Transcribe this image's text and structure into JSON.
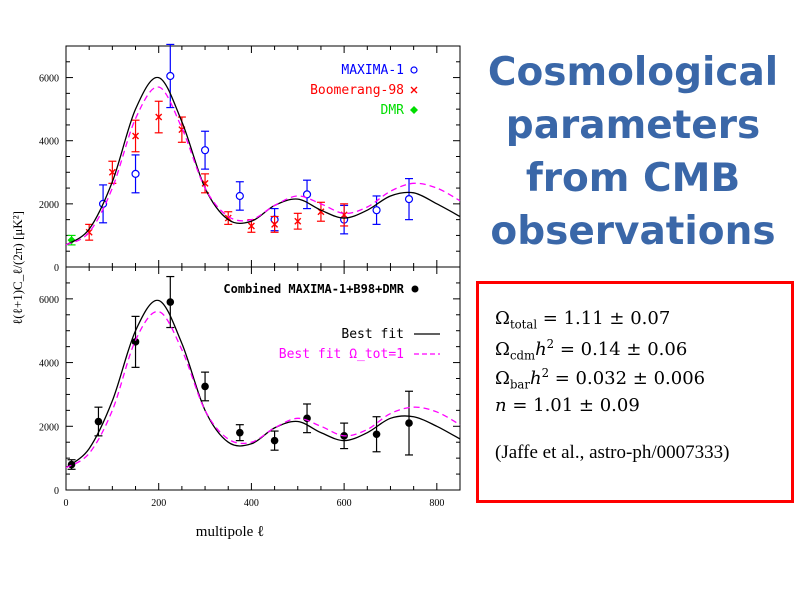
{
  "slide": {
    "title_lines": [
      "Cosmological",
      "parameters",
      "from CMB",
      "observations"
    ],
    "results": [
      {
        "symbol": "Ω",
        "sub": "total",
        "sup": "",
        "suffix": "",
        "value": " = 1.11 ± 0.07"
      },
      {
        "symbol": "Ω",
        "sub": "cdm",
        "sup": "2",
        "suffix": "h",
        "value": " = 0.14 ± 0.06"
      },
      {
        "symbol": "Ω",
        "sub": "bar",
        "sup": "2",
        "suffix": "h",
        "value": " = 0.032 ± 0.006"
      },
      {
        "symbol": "n",
        "sub": "",
        "sup": "",
        "suffix": "",
        "value": " = 1.01 ± 0.09"
      }
    ],
    "citation": "(Jaffe et al., astro-ph/0007333)"
  },
  "colors": {
    "title": "#3a67a8",
    "box_border": "#ff0000",
    "maxima": "#0000ff",
    "boomerang": "#ff0000",
    "dmr": "#00dd00",
    "best_fit": "#000000",
    "best_fit_omega1": "#ff00ff"
  },
  "chart_data": [
    {
      "type": "scatter",
      "panel": "top",
      "ylabel": "ℓ(ℓ+1)C_ℓ/(2π) [μK²]",
      "ylim": [
        0,
        7000
      ],
      "xlim": [
        0,
        850
      ],
      "yticks": [
        0,
        2000,
        4000,
        6000
      ],
      "legend_position": "top-right",
      "series": [
        {
          "name": "MAXIMA-1",
          "marker": "open-circle",
          "color": "#0000ff",
          "x": [
            80,
            150,
            225,
            300,
            375,
            450,
            520,
            600,
            670,
            740
          ],
          "y": [
            2000,
            2950,
            6050,
            3700,
            2250,
            1500,
            2300,
            1500,
            1800,
            2150
          ],
          "err": [
            600,
            600,
            1000,
            600,
            450,
            350,
            450,
            450,
            450,
            650
          ]
        },
        {
          "name": "Boomerang-98",
          "marker": "cross",
          "color": "#ff0000",
          "x": [
            50,
            100,
            150,
            200,
            250,
            300,
            350,
            400,
            450,
            500,
            550,
            600
          ],
          "y": [
            1100,
            3000,
            4150,
            4750,
            4350,
            2650,
            1550,
            1300,
            1350,
            1450,
            1750,
            1650
          ],
          "err": [
            250,
            350,
            500,
            500,
            400,
            300,
            200,
            200,
            250,
            250,
            300,
            350
          ]
        },
        {
          "name": "DMR",
          "marker": "diamond",
          "color": "#00dd00",
          "x": [
            12
          ],
          "y": [
            850
          ],
          "err": [
            150
          ]
        },
        {
          "name": "",
          "line": "solid",
          "color": "#000000",
          "x": [
            0,
            50,
            100,
            150,
            200,
            250,
            300,
            350,
            400,
            450,
            500,
            550,
            600,
            650,
            700,
            750,
            800,
            850
          ],
          "y": [
            700,
            1200,
            2700,
            5000,
            6000,
            4600,
            2500,
            1500,
            1450,
            1950,
            2150,
            1800,
            1550,
            1800,
            2250,
            2350,
            2000,
            1600
          ]
        },
        {
          "name": "",
          "line": "dashed",
          "color": "#ff00ff",
          "x": [
            0,
            50,
            100,
            150,
            200,
            250,
            300,
            350,
            400,
            450,
            500,
            550,
            600,
            650,
            700,
            750,
            800,
            850
          ],
          "y": [
            700,
            1100,
            2500,
            4700,
            5700,
            4400,
            2500,
            1600,
            1500,
            1950,
            2250,
            2000,
            1700,
            1900,
            2400,
            2650,
            2500,
            2100
          ]
        }
      ]
    },
    {
      "type": "scatter",
      "panel": "bottom",
      "xlabel": "multipole ℓ",
      "ylim": [
        0,
        7000
      ],
      "xlim": [
        0,
        850
      ],
      "yticks": [
        0,
        2000,
        4000,
        6000
      ],
      "xticks": [
        0,
        200,
        400,
        600,
        800
      ],
      "legend_position": "top-right",
      "series": [
        {
          "name": "Combined MAXIMA-1+B98+DMR",
          "marker": "filled-circle",
          "color": "#000000",
          "x": [
            12,
            70,
            150,
            225,
            300,
            375,
            450,
            520,
            600,
            670,
            740
          ],
          "y": [
            800,
            2150,
            4650,
            5900,
            3250,
            1800,
            1550,
            2250,
            1700,
            1750,
            2100
          ],
          "err": [
            150,
            450,
            800,
            800,
            450,
            250,
            300,
            450,
            400,
            550,
            1000
          ]
        },
        {
          "name": "Best fit",
          "line": "solid",
          "color": "#000000",
          "x": [
            0,
            50,
            100,
            150,
            200,
            250,
            300,
            350,
            400,
            450,
            500,
            550,
            600,
            650,
            700,
            750,
            800,
            850
          ],
          "y": [
            700,
            1300,
            2800,
            5000,
            5950,
            4600,
            2500,
            1500,
            1450,
            1950,
            2150,
            1800,
            1550,
            1800,
            2250,
            2300,
            2000,
            1600
          ]
        },
        {
          "name": "Best fit Ω_tot=1",
          "line": "dashed",
          "color": "#ff00ff",
          "x": [
            0,
            50,
            100,
            150,
            200,
            250,
            300,
            350,
            400,
            450,
            500,
            550,
            600,
            650,
            700,
            750,
            800,
            850
          ],
          "y": [
            700,
            1150,
            2500,
            4700,
            5600,
            4400,
            2500,
            1600,
            1500,
            1950,
            2250,
            2000,
            1700,
            1900,
            2400,
            2600,
            2450,
            2050
          ]
        }
      ],
      "annotation": "Combined MAXIMA-1+B98+DMR"
    }
  ]
}
